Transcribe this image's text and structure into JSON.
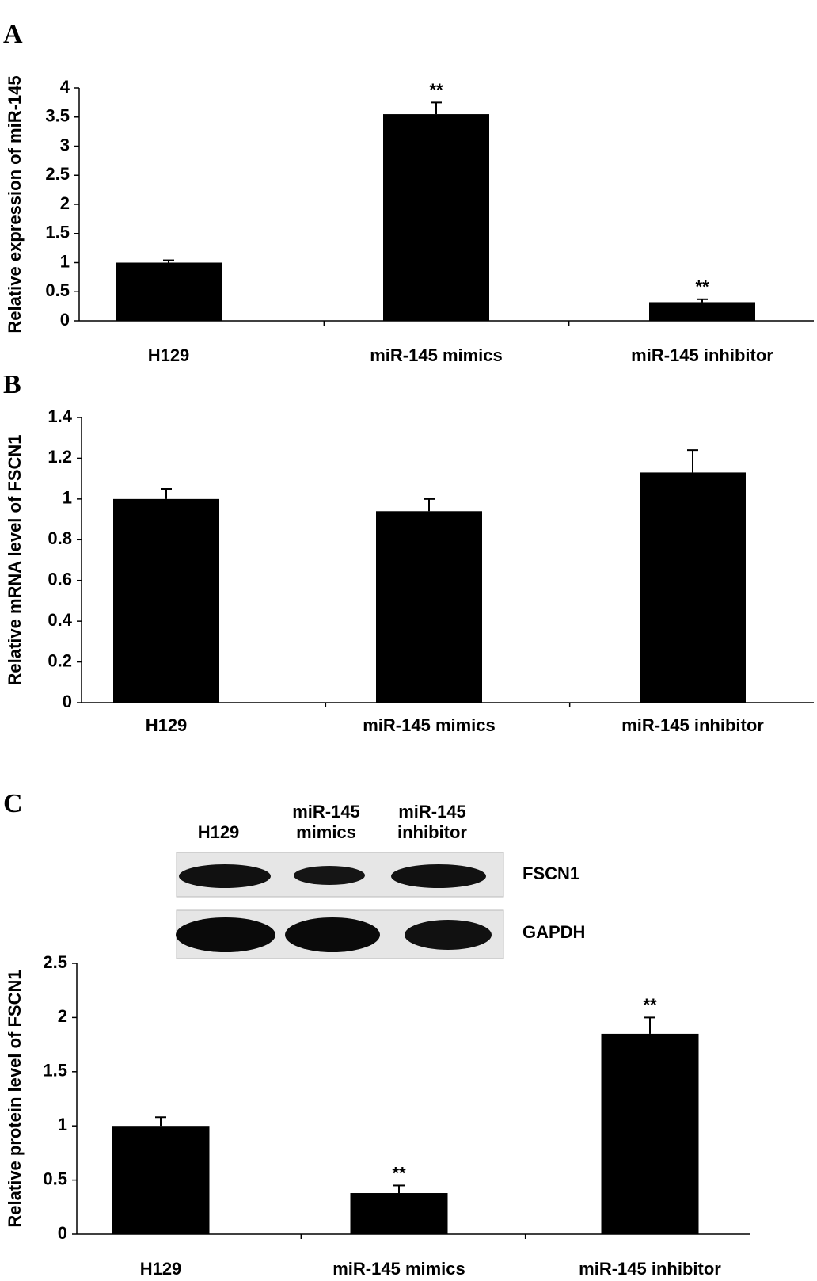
{
  "panels": [
    "A",
    "B",
    "C"
  ],
  "chart_data": [
    {
      "type": "bar",
      "ylabel": "Relative expression of miR-145",
      "categories": [
        "H129",
        "miR-145 mimics",
        "miR-145 inhibitor"
      ],
      "values": [
        1,
        3.55,
        0.32
      ],
      "errors": [
        0.04,
        0.2,
        0.05
      ],
      "significance": [
        null,
        "**",
        "**"
      ],
      "color": "#000000",
      "ylim": [
        0,
        4
      ],
      "yticks": [
        0,
        0.5,
        1,
        1.5,
        2,
        2.5,
        3,
        3.5,
        4
      ]
    },
    {
      "type": "bar",
      "ylabel": "Relative mRNA level of FSCN1",
      "categories": [
        "H129",
        "miR-145 mimics",
        "miR-145 inhibitor"
      ],
      "values": [
        1,
        0.94,
        1.13
      ],
      "errors": [
        0.05,
        0.06,
        0.11
      ],
      "color": "#000000",
      "ylim": [
        0,
        1.4
      ],
      "yticks": [
        0,
        0.2,
        0.4,
        0.6,
        0.8,
        1,
        1.2,
        1.4
      ]
    },
    {
      "type": "bar",
      "ylabel": "Relative protein level of FSCN1",
      "categories": [
        "H129",
        "miR-145 mimics",
        "miR-145 inhibitor"
      ],
      "values": [
        1,
        0.38,
        1.85
      ],
      "errors": [
        0.08,
        0.07,
        0.15
      ],
      "significance": [
        null,
        "**",
        "**"
      ],
      "color": "#000000",
      "ylim": [
        0,
        2.5
      ],
      "yticks": [
        0,
        0.5,
        1,
        1.5,
        2,
        2.5
      ],
      "blot": {
        "lanes": [
          [
            "H129"
          ],
          [
            "miR-145",
            "mimics"
          ],
          [
            "miR-145",
            "inhibitor"
          ]
        ],
        "bands": [
          "FSCN1",
          "GAPDH"
        ]
      }
    }
  ]
}
